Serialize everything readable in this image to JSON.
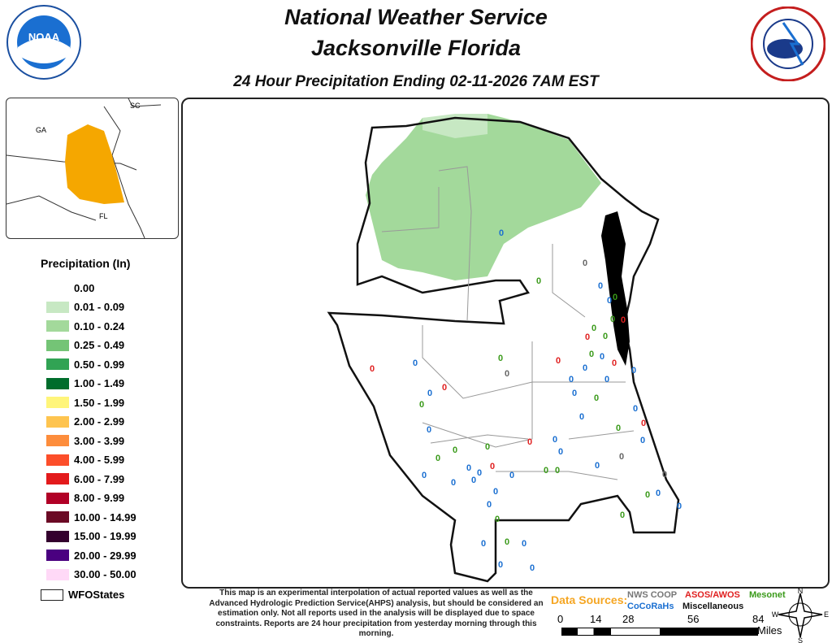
{
  "header": {
    "title_line1": "National Weather Service",
    "title_line2": "Jacksonville Florida",
    "subtitle": "24 Hour Precipitation Ending 02-11-2026 7AM EST"
  },
  "logos": {
    "left": "NOAA",
    "right": "National Weather Service"
  },
  "inset": {
    "labels": [
      "SC",
      "GA",
      "FL"
    ],
    "highlight_color": "#f5a700"
  },
  "legend": {
    "title": "Precipitation (In)",
    "items": [
      {
        "label": "0.00",
        "color": null
      },
      {
        "label": "0.01 - 0.09",
        "color": "#c7e8c3"
      },
      {
        "label": "0.10 - 0.24",
        "color": "#a3d99b"
      },
      {
        "label": "0.25 - 0.49",
        "color": "#74c476"
      },
      {
        "label": "0.50 - 0.99",
        "color": "#31a354"
      },
      {
        "label": "1.00 - 1.49",
        "color": "#006d2c"
      },
      {
        "label": "1.50 - 1.99",
        "color": "#fff57a"
      },
      {
        "label": "2.00 - 2.99",
        "color": "#fec44f"
      },
      {
        "label": "3.00 - 3.99",
        "color": "#fd8d3c"
      },
      {
        "label": "4.00 - 5.99",
        "color": "#fc4e2a"
      },
      {
        "label": "6.00 - 7.99",
        "color": "#e31a1c"
      },
      {
        "label": "8.00 - 9.99",
        "color": "#b10026"
      },
      {
        "label": "10.00 - 14.99",
        "color": "#6b0a25"
      },
      {
        "label": "15.00 - 19.99",
        "color": "#33002e"
      },
      {
        "label": "20.00 - 29.99",
        "color": "#4a0080"
      },
      {
        "label": "30.00 - 50.00",
        "color": "#ffd9f7"
      }
    ],
    "boundary_label": "WFOStates"
  },
  "map": {
    "rain_color": "#a3d99b"
  },
  "stations": {
    "colors": {
      "coop": "#666666",
      "asos": "#e02020",
      "cocorahs": "#1a6fd1",
      "mesonet": "#3a9a1a",
      "misc": "#111111"
    },
    "reports": [
      [
        "0",
        "cocorahs"
      ],
      [
        "0",
        "coop"
      ],
      [
        "0",
        "mesonet"
      ],
      [
        "0",
        "cocorahs"
      ],
      [
        "0",
        "cocorahs"
      ],
      [
        "0",
        "mesonet"
      ],
      [
        "0",
        "mesonet"
      ],
      [
        "0",
        "asos"
      ],
      [
        "0",
        "mesonet"
      ],
      [
        "0",
        "mesonet"
      ],
      [
        "0",
        "asos"
      ],
      [
        "0",
        "mesonet"
      ],
      [
        "0",
        "cocorahs"
      ],
      [
        "0",
        "mesonet"
      ],
      [
        "0",
        "asos"
      ],
      [
        "0",
        "asos"
      ],
      [
        "0",
        "cocorahs"
      ],
      [
        "0",
        "asos"
      ],
      [
        "0",
        "coop"
      ],
      [
        "0",
        "cocorahs"
      ],
      [
        "0",
        "cocorahs"
      ],
      [
        "0",
        "cocorahs"
      ],
      [
        "0",
        "cocorahs"
      ],
      [
        "0",
        "asos"
      ],
      [
        "0",
        "cocorahs"
      ],
      [
        "0",
        "cocorahs"
      ],
      [
        "0",
        "mesonet"
      ],
      [
        "0",
        "mesonet"
      ],
      [
        "0",
        "cocorahs"
      ],
      [
        "0",
        "cocorahs"
      ],
      [
        "0",
        "asos"
      ],
      [
        "0",
        "mesonet"
      ],
      [
        "0",
        "cocorahs"
      ],
      [
        "0",
        "cocorahs"
      ],
      [
        "0",
        "asos"
      ],
      [
        "0",
        "cocorahs"
      ],
      [
        "0",
        "mesonet"
      ],
      [
        "0",
        "mesonet"
      ],
      [
        "0",
        "cocorahs"
      ],
      [
        "0",
        "mesonet"
      ],
      [
        "0",
        "coop"
      ],
      [
        "0",
        "asos"
      ],
      [
        "0",
        "cocorahs"
      ],
      [
        "0",
        "cocorahs"
      ],
      [
        "0",
        "cocorahs"
      ],
      [
        "0",
        "mesonet"
      ],
      [
        "0",
        "mesonet"
      ],
      [
        "0",
        "cocorahs"
      ],
      [
        "0",
        "cocorahs"
      ],
      [
        "0",
        "cocorahs"
      ],
      [
        "0",
        "cocorahs"
      ],
      [
        "0",
        "coop"
      ],
      [
        "0",
        "cocorahs"
      ],
      [
        "0",
        "mesonet"
      ],
      [
        "0",
        "cocorahs"
      ],
      [
        "0",
        "cocorahs"
      ],
      [
        "0",
        "cocorahs"
      ],
      [
        "0",
        "mesonet"
      ],
      [
        "0",
        "mesonet"
      ],
      [
        "0",
        "cocorahs"
      ],
      [
        "0",
        "mesonet"
      ],
      [
        "0",
        "cocorahs"
      ],
      [
        "0",
        "cocorahs"
      ],
      [
        "0",
        "cocorahs"
      ]
    ]
  },
  "footer": {
    "disclaimer": "This map is an experimental interpolation of actual reported values as well as the Advanced Hydrologic Prediction Service(AHPS) analysis, but should be considered an estimation only. Not all reports used in the analysis will be displayed due to space constraints. Reports are 24 hour precipitation from yesterday morning through this morning.",
    "data_sources_label": "Data Sources:",
    "sources": {
      "coop": "NWS COOP",
      "asos": "ASOS/AWOS",
      "mesonet": "Mesonet",
      "cocorahs": "CoCoRaHs",
      "misc": "Miscellaneous"
    },
    "scale": {
      "ticks": [
        "0",
        "14",
        "28",
        "56",
        "84"
      ],
      "unit": "Miles"
    },
    "compass": {
      "n": "N",
      "s": "S",
      "e": "E",
      "w": "W"
    }
  }
}
